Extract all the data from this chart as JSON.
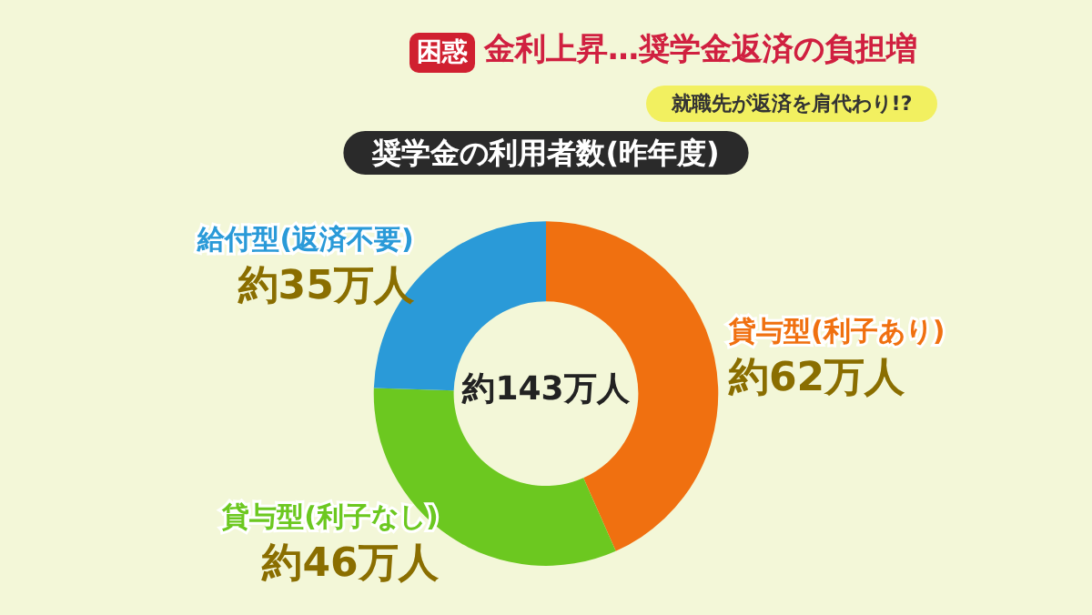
{
  "chart_data": {
    "type": "donut",
    "title": "奨学金の利用者数(昨年度)",
    "categories": [
      "貸与型(利子あり)",
      "貸与型(利子なし)",
      "給付型(返済不要)"
    ],
    "values": [
      62,
      46,
      35
    ],
    "colors": [
      "#f07010",
      "#6cc820",
      "#2a9ad8"
    ],
    "value_labels": [
      "約62万人",
      "約46万人",
      "約35万人"
    ],
    "annotations": [
      "約143万人",
      "困惑",
      "金利上昇…奨学金返済の負担増",
      "就職先が返済を肩代わり!?"
    ]
  }
}
